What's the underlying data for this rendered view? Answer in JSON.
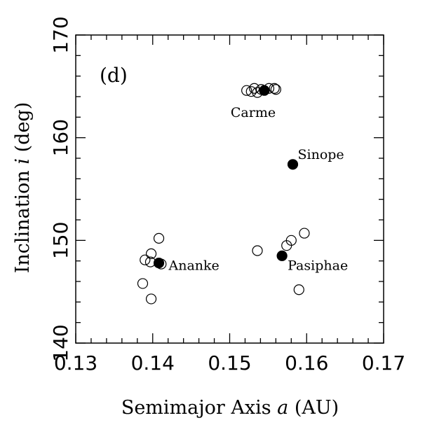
{
  "chart_data": {
    "type": "scatter",
    "panel_label": "(d)",
    "xlabel": {
      "text": "Semimajor Axis ",
      "var": "a",
      "unit": " (AU)"
    },
    "ylabel": {
      "text": "Inclination ",
      "var": "i",
      "unit": " (deg)"
    },
    "xlim": [
      0.13,
      0.17
    ],
    "ylim": [
      140,
      170
    ],
    "xticks": [
      0.13,
      0.14,
      0.15,
      0.16,
      0.17
    ],
    "xtick_labels": [
      "0.13",
      "0.14",
      "0.15",
      "0.16",
      "0.17"
    ],
    "yticks": [
      140,
      150,
      160,
      170
    ],
    "ytick_labels": [
      "140",
      "150",
      "160",
      "170"
    ],
    "series": [
      {
        "marker": "open-circle",
        "color": "#000000",
        "points": [
          {
            "x": 0.1522,
            "y": 164.6
          },
          {
            "x": 0.1528,
            "y": 164.5
          },
          {
            "x": 0.1532,
            "y": 164.8
          },
          {
            "x": 0.1536,
            "y": 164.4
          },
          {
            "x": 0.1541,
            "y": 164.7
          },
          {
            "x": 0.1551,
            "y": 164.8
          },
          {
            "x": 0.1558,
            "y": 164.8
          },
          {
            "x": 0.156,
            "y": 164.7
          },
          {
            "x": 0.1408,
            "y": 150.2
          },
          {
            "x": 0.1398,
            "y": 148.7
          },
          {
            "x": 0.139,
            "y": 148.1
          },
          {
            "x": 0.1397,
            "y": 147.9
          },
          {
            "x": 0.1411,
            "y": 147.7
          },
          {
            "x": 0.1387,
            "y": 145.8
          },
          {
            "x": 0.1398,
            "y": 144.3
          },
          {
            "x": 0.1536,
            "y": 149.0
          },
          {
            "x": 0.1574,
            "y": 149.5
          },
          {
            "x": 0.158,
            "y": 150.0
          },
          {
            "x": 0.1597,
            "y": 150.7
          },
          {
            "x": 0.159,
            "y": 145.2
          }
        ]
      },
      {
        "marker": "filled-circle",
        "color": "#000000",
        "points": [
          {
            "x": 0.1545,
            "y": 164.6,
            "label": "Carme"
          },
          {
            "x": 0.1582,
            "y": 157.4,
            "label": "Sinope"
          },
          {
            "x": 0.1408,
            "y": 147.8,
            "label": "Ananke"
          },
          {
            "x": 0.1568,
            "y": 148.5,
            "label": "Pasiphae"
          }
        ]
      }
    ],
    "grid": false,
    "legend": "none"
  }
}
